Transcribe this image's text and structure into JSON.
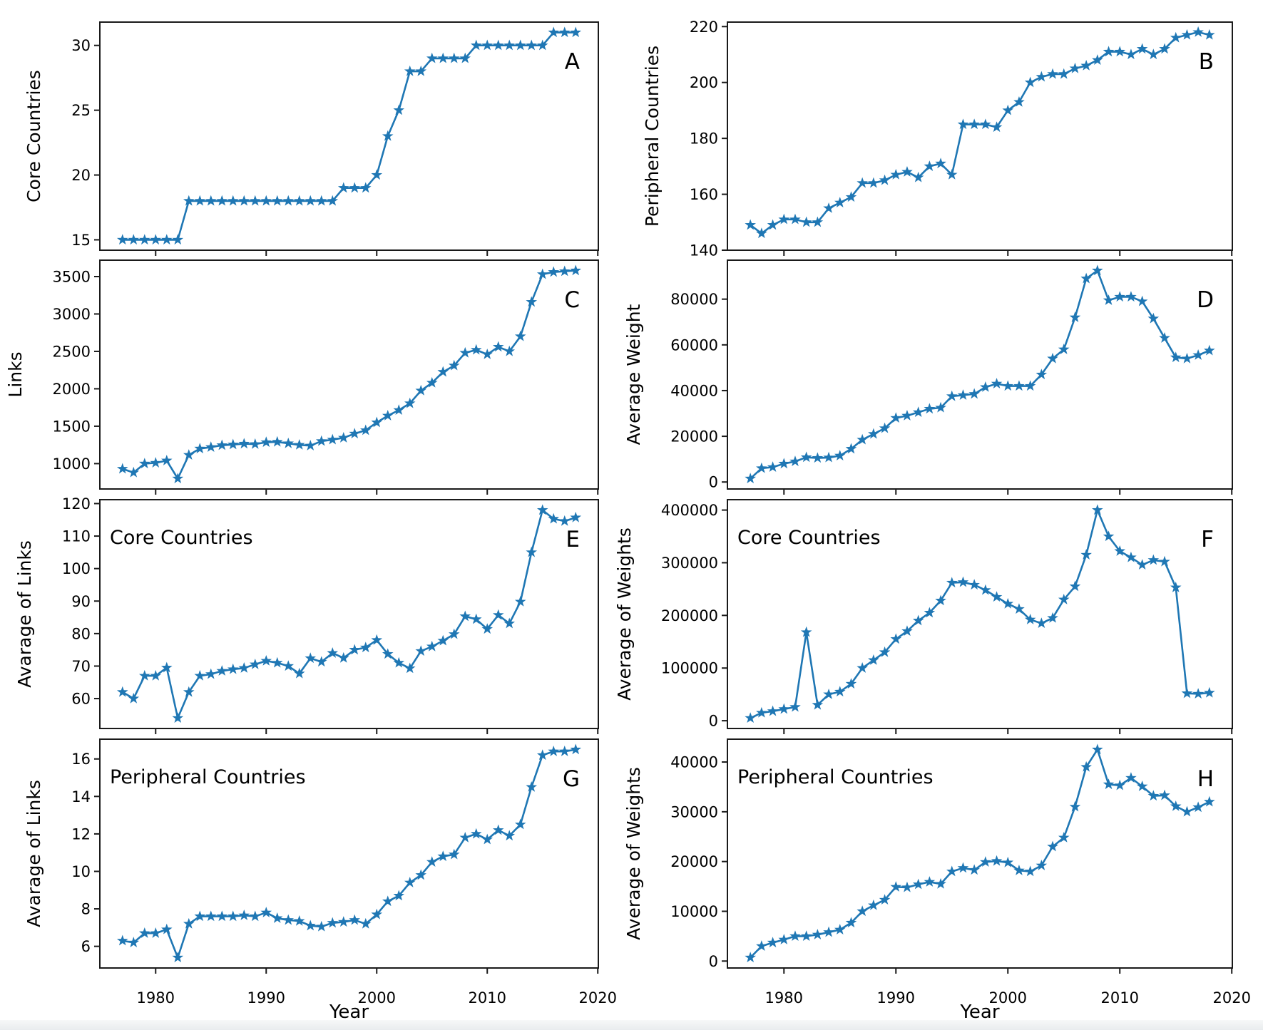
{
  "figure": {
    "description": "Eight-panel time-series figure, panels A-H, star markers on blue lines",
    "xlabel": "Year",
    "line_color": "#1f77b4",
    "marker": "star",
    "background_color": "#ffffff",
    "bottom_strip_color": "#edeff0",
    "years": [
      1977,
      1978,
      1979,
      1980,
      1981,
      1982,
      1983,
      1984,
      1985,
      1986,
      1987,
      1988,
      1989,
      1990,
      1991,
      1992,
      1993,
      1994,
      1995,
      1996,
      1997,
      1998,
      1999,
      2000,
      2001,
      2002,
      2003,
      2004,
      2005,
      2006,
      2007,
      2008,
      2009,
      2010,
      2011,
      2012,
      2013,
      2014,
      2015,
      2016,
      2017,
      2018
    ],
    "xticks": [
      1980,
      1990,
      2000,
      2010,
      2020
    ],
    "xlim": [
      1974.95,
      2020.05
    ]
  },
  "chart_data": [
    {
      "id": "A",
      "type": "line",
      "letter": "A",
      "title": "",
      "ylabel": "Core Countries",
      "xlabel": "",
      "yticks": [
        15,
        20,
        25,
        30
      ],
      "ylim": [
        14.2,
        31.8
      ],
      "show_x_tick_labels": false,
      "values": [
        15,
        15,
        15,
        15,
        15,
        15,
        18,
        18,
        18,
        18,
        18,
        18,
        18,
        18,
        18,
        18,
        18,
        18,
        18,
        18,
        19,
        19,
        19,
        20,
        23,
        25,
        28,
        28,
        29,
        29,
        29,
        29,
        30,
        30,
        30,
        30,
        30,
        30,
        30,
        31,
        31,
        31
      ]
    },
    {
      "id": "B",
      "type": "line",
      "letter": "B",
      "title": "",
      "ylabel": "Peripheral Countries",
      "xlabel": "",
      "yticks": [
        140,
        160,
        180,
        200,
        220
      ],
      "ylim": [
        140,
        221.6
      ],
      "show_x_tick_labels": false,
      "values": [
        149,
        146,
        149,
        151,
        151,
        150,
        150,
        155,
        157,
        159,
        164,
        164,
        165,
        167,
        168,
        166,
        170,
        171,
        167,
        185,
        185,
        185,
        184,
        190,
        193,
        200,
        202,
        203,
        203,
        205,
        206,
        208,
        211,
        211,
        210,
        212,
        210,
        212,
        216,
        217,
        218,
        217
      ]
    },
    {
      "id": "C",
      "type": "line",
      "letter": "C",
      "title": "",
      "ylabel": "Links",
      "xlabel": "",
      "yticks": [
        1000,
        1500,
        2000,
        2500,
        3000,
        3500
      ],
      "ylim": [
        661,
        3719
      ],
      "show_x_tick_labels": false,
      "values": [
        930,
        880,
        1000,
        1010,
        1040,
        800,
        1115,
        1200,
        1220,
        1245,
        1255,
        1265,
        1260,
        1285,
        1290,
        1270,
        1250,
        1240,
        1300,
        1320,
        1345,
        1400,
        1445,
        1550,
        1640,
        1715,
        1805,
        1975,
        2080,
        2225,
        2310,
        2480,
        2520,
        2460,
        2560,
        2500,
        2700,
        3160,
        3530,
        3560,
        3570,
        3580
      ]
    },
    {
      "id": "D",
      "type": "line",
      "letter": "D",
      "title": "",
      "ylabel": "Average Weight",
      "xlabel": "",
      "yticks": [
        0,
        20000,
        40000,
        60000,
        80000
      ],
      "ylim": [
        -3050,
        97050
      ],
      "show_x_tick_labels": false,
      "values": [
        1500,
        6000,
        6500,
        8000,
        9000,
        10800,
        10500,
        10700,
        11500,
        14500,
        18500,
        21000,
        23500,
        28000,
        29000,
        30500,
        32000,
        32500,
        37500,
        38000,
        38500,
        41500,
        43000,
        42000,
        42000,
        42000,
        47000,
        54000,
        58000,
        72000,
        89000,
        92500,
        79500,
        81000,
        81000,
        79000,
        71500,
        63000,
        54500,
        54000,
        55500,
        57500
      ]
    },
    {
      "id": "E",
      "type": "line",
      "letter": "E",
      "title": "Core Countries",
      "ylabel": "Avarage of Links",
      "xlabel": "",
      "yticks": [
        60,
        70,
        80,
        90,
        100,
        110,
        120
      ],
      "ylim": [
        50.8,
        121.2
      ],
      "show_x_tick_labels": false,
      "values": [
        62,
        60,
        67,
        67,
        69.5,
        54,
        62,
        67,
        67.5,
        68.5,
        69,
        69.4,
        70.5,
        71.6,
        71,
        70,
        67.7,
        72.4,
        71.3,
        74,
        72.5,
        75,
        75.7,
        78,
        73.7,
        71,
        69.3,
        74.6,
        76,
        77.8,
        79.8,
        85.3,
        84.4,
        81.4,
        85.7,
        83.1,
        89.8,
        105,
        118,
        115.3,
        114.6,
        115.7
      ]
    },
    {
      "id": "F",
      "type": "line",
      "letter": "F",
      "title": "Core Countries",
      "ylabel": "Average of Weights",
      "xlabel": "",
      "yticks": [
        0,
        100000,
        200000,
        300000,
        400000
      ],
      "ylim": [
        -14750,
        419750
      ],
      "show_x_tick_labels": false,
      "values": [
        5000,
        15000,
        18000,
        22000,
        26000,
        168000,
        30000,
        50000,
        55000,
        70000,
        100000,
        115000,
        130000,
        155000,
        170000,
        190000,
        205000,
        228000,
        262000,
        263000,
        258000,
        248000,
        235000,
        222000,
        212000,
        192000,
        185000,
        195000,
        230000,
        255000,
        315000,
        400000,
        350000,
        322000,
        310000,
        296000,
        305000,
        302000,
        253000,
        52000,
        51000,
        53000
      ]
    },
    {
      "id": "G",
      "type": "line",
      "letter": "G",
      "title": "Peripheral Countries",
      "ylabel": "Avarage of Links",
      "xlabel": "Year",
      "yticks": [
        6,
        8,
        10,
        12,
        14,
        16
      ],
      "ylim": [
        4.845,
        17.055
      ],
      "show_x_tick_labels": true,
      "values": [
        6.3,
        6.2,
        6.7,
        6.7,
        6.9,
        5.4,
        7.2,
        7.6,
        7.6,
        7.6,
        7.6,
        7.65,
        7.6,
        7.8,
        7.5,
        7.4,
        7.35,
        7.1,
        7.05,
        7.25,
        7.3,
        7.4,
        7.2,
        7.7,
        8.4,
        8.7,
        9.4,
        9.8,
        10.5,
        10.8,
        10.9,
        11.8,
        12,
        11.7,
        12.2,
        11.9,
        12.5,
        14.5,
        16.2,
        16.4,
        16.4,
        16.5
      ]
    },
    {
      "id": "H",
      "type": "line",
      "letter": "H",
      "title": "Peripheral Countries",
      "ylabel": "Average of Weights",
      "xlabel": "Year",
      "yticks": [
        0,
        10000,
        20000,
        30000,
        40000
      ],
      "ylim": [
        -1390,
        44590
      ],
      "show_x_tick_labels": true,
      "values": [
        700,
        3000,
        3700,
        4300,
        5000,
        5000,
        5300,
        5800,
        6300,
        7700,
        10000,
        11200,
        12300,
        14900,
        14800,
        15400,
        15900,
        15500,
        18000,
        18700,
        18300,
        19900,
        20100,
        19800,
        18200,
        18000,
        19200,
        23000,
        24800,
        31000,
        39000,
        42500,
        35500,
        35300,
        36800,
        35100,
        33200,
        33300,
        31100,
        30000,
        30900,
        32000
      ]
    }
  ]
}
